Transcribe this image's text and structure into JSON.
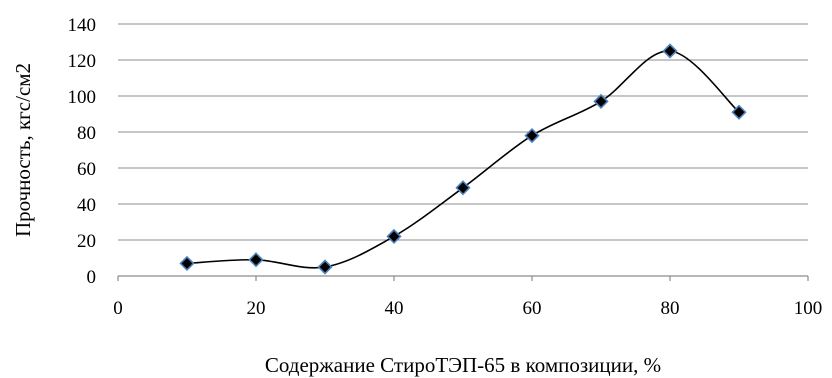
{
  "chart_data": {
    "type": "scatter",
    "smooth_line": true,
    "x": [
      10,
      20,
      30,
      40,
      50,
      60,
      70,
      80,
      90
    ],
    "y": [
      7,
      9,
      5,
      22,
      49,
      78,
      97,
      125,
      91
    ],
    "xlabel": "Содержание СтироТЭП-65 в композиции, %",
    "ylabel": "Прочность, кгс/см2",
    "xlim": [
      0,
      100
    ],
    "ylim": [
      0,
      140
    ],
    "xticks": [
      "0",
      "20",
      "40",
      "60",
      "80",
      "100"
    ],
    "yticks": [
      "0",
      "20",
      "40",
      "60",
      "80",
      "100",
      "120",
      "140"
    ],
    "grid": "horizontal",
    "marker": "diamond",
    "colors": {
      "marker_fill": "#000000",
      "marker_edge": "#4f81bd",
      "line": "#000000",
      "grid": "#8c8c8c"
    }
  }
}
